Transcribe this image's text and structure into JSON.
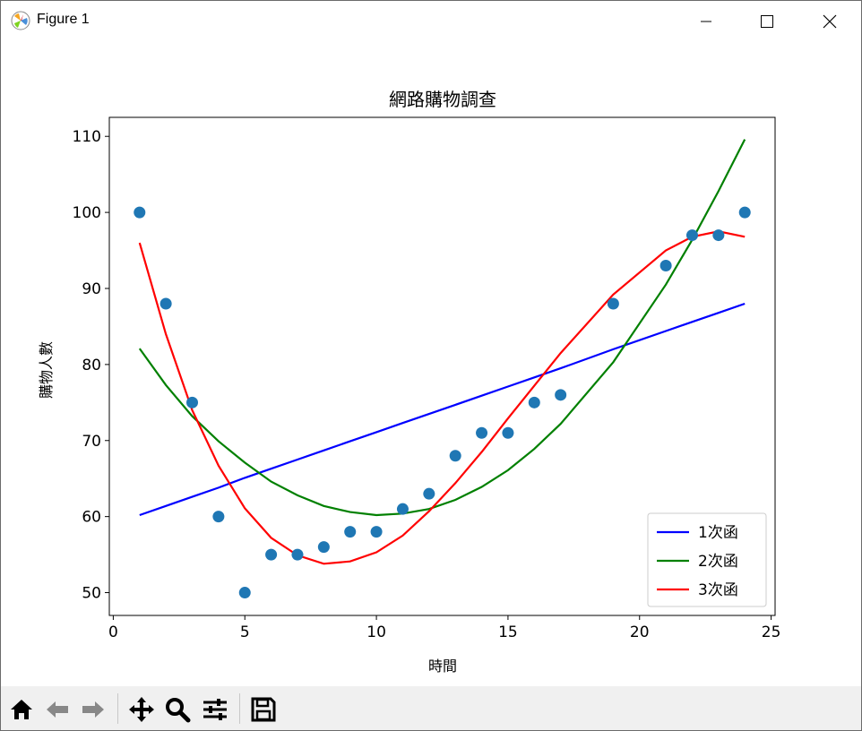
{
  "window": {
    "title": "Figure 1"
  },
  "toolbar": {
    "buttons": [
      {
        "name": "home-button",
        "icon": "home-icon"
      },
      {
        "name": "back-button",
        "icon": "back-arrow-icon"
      },
      {
        "name": "forward-button",
        "icon": "forward-arrow-icon"
      },
      {
        "name": "pan-button",
        "icon": "move-icon"
      },
      {
        "name": "zoom-button",
        "icon": "magnifier-icon"
      },
      {
        "name": "configure-subplots-button",
        "icon": "sliders-icon"
      },
      {
        "name": "save-button",
        "icon": "floppy-disk-icon"
      }
    ]
  },
  "chart_data": {
    "type": "scatter",
    "title": "網路購物調查",
    "xlabel": "時間",
    "ylabel": "購物人數",
    "xlim": [
      -0.15,
      25.15
    ],
    "ylim": [
      47,
      112.5
    ],
    "xticks": [
      0,
      5,
      10,
      15,
      20,
      25
    ],
    "yticks": [
      50,
      60,
      70,
      80,
      90,
      100,
      110
    ],
    "grid": false,
    "legend_position": "lower-right",
    "scatter": {
      "color": "#1f77b4",
      "x": [
        1,
        2,
        3,
        4,
        5,
        6,
        7,
        8,
        9,
        10,
        11,
        12,
        13,
        14,
        15,
        16,
        17,
        19,
        21,
        22,
        23,
        24
      ],
      "y": [
        100,
        88,
        75,
        60,
        50,
        55,
        55,
        56,
        58,
        58,
        61,
        63,
        68,
        71,
        71,
        75,
        76,
        88,
        93,
        97,
        97,
        100
      ]
    },
    "fit_x": [
      1,
      2,
      3,
      4,
      5,
      6,
      7,
      8,
      9,
      10,
      11,
      12,
      13,
      14,
      15,
      16,
      17,
      19,
      21,
      22,
      23,
      24
    ],
    "series": [
      {
        "name": "1次函",
        "color": "#0000ff",
        "values": [
          60.2,
          61.4,
          62.6,
          63.8,
          65.1,
          66.3,
          67.5,
          68.7,
          69.9,
          71.1,
          72.3,
          73.5,
          74.7,
          75.9,
          77.1,
          78.3,
          79.5,
          82.0,
          84.4,
          85.6,
          86.8,
          88.0
        ]
      },
      {
        "name": "2次函",
        "color": "#008000",
        "values": [
          82.1,
          77.3,
          73.2,
          69.9,
          67.1,
          64.6,
          62.8,
          61.4,
          60.6,
          60.2,
          60.4,
          61.0,
          62.2,
          63.9,
          66.1,
          68.9,
          72.2,
          80.3,
          90.5,
          96.4,
          102.8,
          109.6
        ]
      },
      {
        "name": "3次函",
        "color": "#ff0000",
        "values": [
          96.0,
          84.0,
          74.0,
          66.7,
          61.1,
          57.2,
          54.9,
          53.8,
          54.1,
          55.3,
          57.5,
          60.7,
          64.4,
          68.5,
          72.9,
          77.2,
          81.5,
          89.2,
          95.0,
          96.8,
          97.5,
          96.8
        ]
      }
    ]
  }
}
